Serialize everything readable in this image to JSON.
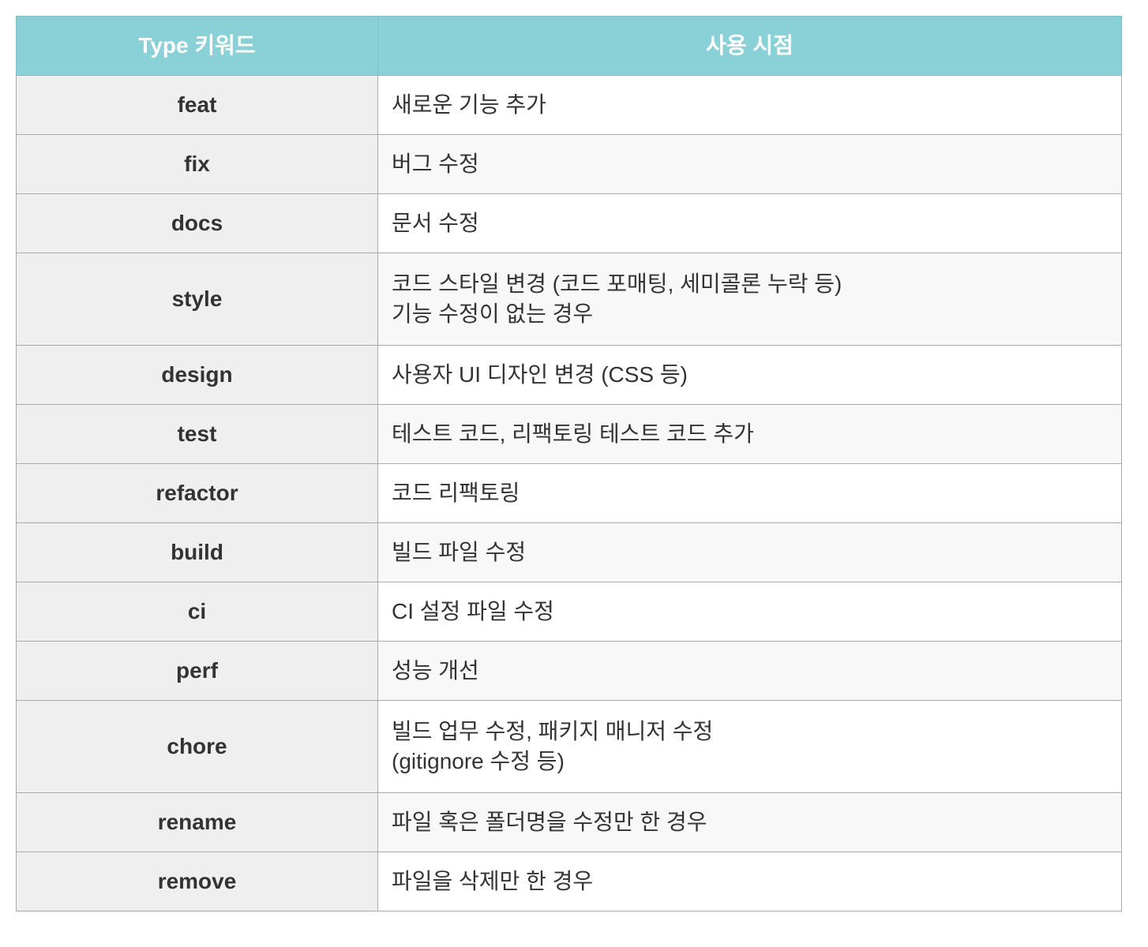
{
  "header": {
    "type_col": "Type 키워드",
    "usage_col": "사용 시점"
  },
  "rows": [
    {
      "type": "feat",
      "lines": [
        "새로운 기능 추가"
      ]
    },
    {
      "type": "fix",
      "lines": [
        "버그 수정"
      ]
    },
    {
      "type": "docs",
      "lines": [
        "문서 수정"
      ]
    },
    {
      "type": "style",
      "lines": [
        "코드 스타일 변경 (코드 포매팅, 세미콜론 누락 등)",
        "기능 수정이 없는 경우"
      ]
    },
    {
      "type": "design",
      "lines": [
        "사용자 UI 디자인 변경 (CSS 등)"
      ]
    },
    {
      "type": "test",
      "lines": [
        "테스트 코드, 리팩토링 테스트 코드 추가"
      ]
    },
    {
      "type": "refactor",
      "lines": [
        "코드 리팩토링"
      ]
    },
    {
      "type": "build",
      "lines": [
        "빌드 파일 수정"
      ]
    },
    {
      "type": "ci",
      "lines": [
        "CI 설정 파일 수정"
      ]
    },
    {
      "type": "perf",
      "lines": [
        "성능 개선"
      ]
    },
    {
      "type": "chore",
      "lines": [
        "빌드 업무 수정, 패키지 매니저 수정",
        "(gitignore 수정 등)"
      ]
    },
    {
      "type": "rename",
      "lines": [
        "파일 혹은 폴더명을 수정만 한 경우"
      ]
    },
    {
      "type": "remove",
      "lines": [
        "파일을 삭제만 한 경우"
      ]
    }
  ],
  "colors": {
    "header_bg": "#89d1d6",
    "header_text": "#ffffff",
    "type_cell_bg": "#efefef",
    "border": "#a9a9a9",
    "text": "#333333"
  }
}
